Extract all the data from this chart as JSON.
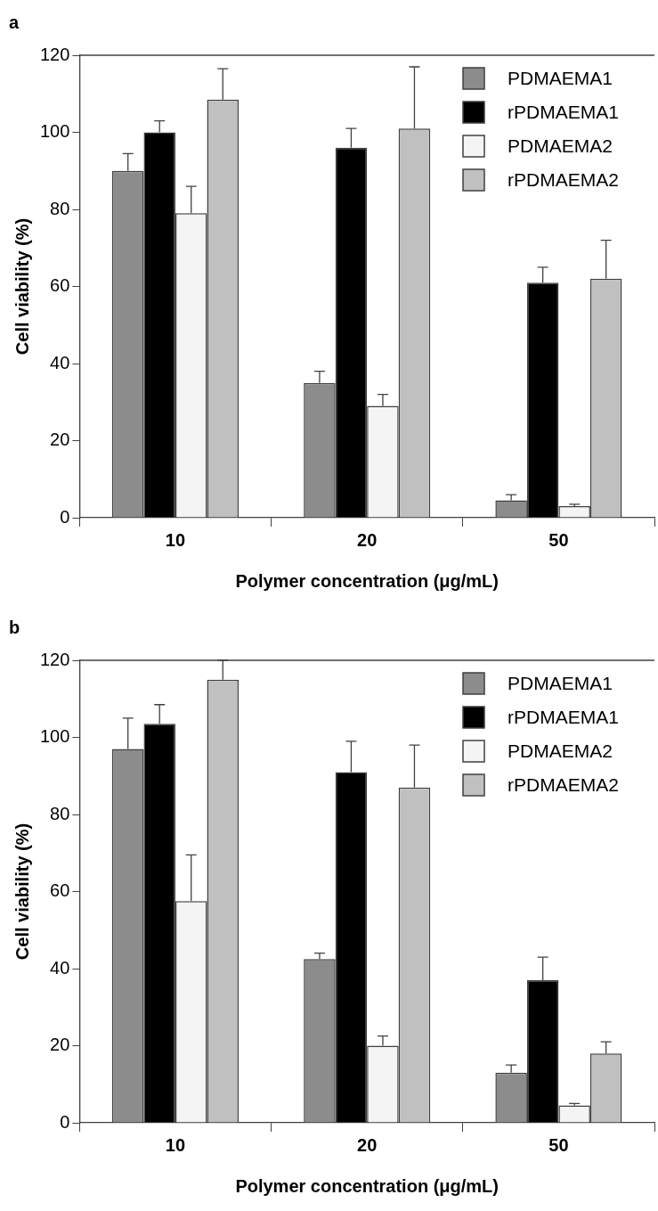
{
  "chart_data": [
    {
      "type": "bar",
      "title": "a",
      "xlabel": "Polymer concentration (μg/mL)",
      "ylabel": "Cell viability (%)",
      "categories": [
        "10",
        "20",
        "50"
      ],
      "ylim": [
        0,
        120
      ],
      "yticks": [
        0,
        20,
        40,
        60,
        80,
        100,
        120
      ],
      "grid": false,
      "legend": "top right",
      "series": [
        {
          "name": "PDMAEMA1",
          "color": "#8c8c8c",
          "values": [
            90,
            35,
            4.5
          ],
          "errors": [
            [
              90,
              94.5
            ],
            [
              35,
              38
            ],
            [
              4.5,
              6
            ]
          ]
        },
        {
          "name": "rPDMAEMA1",
          "color": "#000000",
          "values": [
            100,
            96,
            61
          ],
          "errors": [
            [
              100,
              103
            ],
            [
              96,
              101
            ],
            [
              61,
              65
            ]
          ]
        },
        {
          "name": "PDMAEMA2",
          "color": "#f4f4f4",
          "values": [
            79,
            29,
            3
          ],
          "errors": [
            [
              79,
              86
            ],
            [
              29,
              32
            ],
            [
              3,
              3.5
            ]
          ]
        },
        {
          "name": "rPDMAEMA2",
          "color": "#c0c0c0",
          "values": [
            108.5,
            101,
            62
          ],
          "errors": [
            [
              108.5,
              116.5
            ],
            [
              101,
              117
            ],
            [
              62,
              72
            ]
          ]
        }
      ]
    },
    {
      "type": "bar",
      "title": "b",
      "xlabel": "Polymer concentration (μg/mL)",
      "ylabel": "Cell viability (%)",
      "categories": [
        "10",
        "20",
        "50"
      ],
      "ylim": [
        0,
        120
      ],
      "yticks": [
        0,
        20,
        40,
        60,
        80,
        100,
        120
      ],
      "grid": false,
      "legend": "top right",
      "series": [
        {
          "name": "PDMAEMA1",
          "color": "#8c8c8c",
          "values": [
            97,
            42.5,
            13
          ],
          "errors": [
            [
              97,
              105
            ],
            [
              42.5,
              44
            ],
            [
              13,
              15
            ]
          ]
        },
        {
          "name": "rPDMAEMA1",
          "color": "#000000",
          "values": [
            103.5,
            91,
            37
          ],
          "errors": [
            [
              103.5,
              108.5
            ],
            [
              91,
              99
            ],
            [
              37,
              43
            ]
          ]
        },
        {
          "name": "PDMAEMA2",
          "color": "#f4f4f4",
          "values": [
            57.5,
            20,
            4.5
          ],
          "errors": [
            [
              57.5,
              69.5
            ],
            [
              20,
              22.5
            ],
            [
              4.5,
              5
            ]
          ]
        },
        {
          "name": "rPDMAEMA2",
          "color": "#c0c0c0",
          "values": [
            115,
            87,
            18
          ],
          "errors": [
            [
              115,
              120
            ],
            [
              87,
              98
            ],
            [
              18,
              21
            ]
          ]
        }
      ]
    }
  ]
}
